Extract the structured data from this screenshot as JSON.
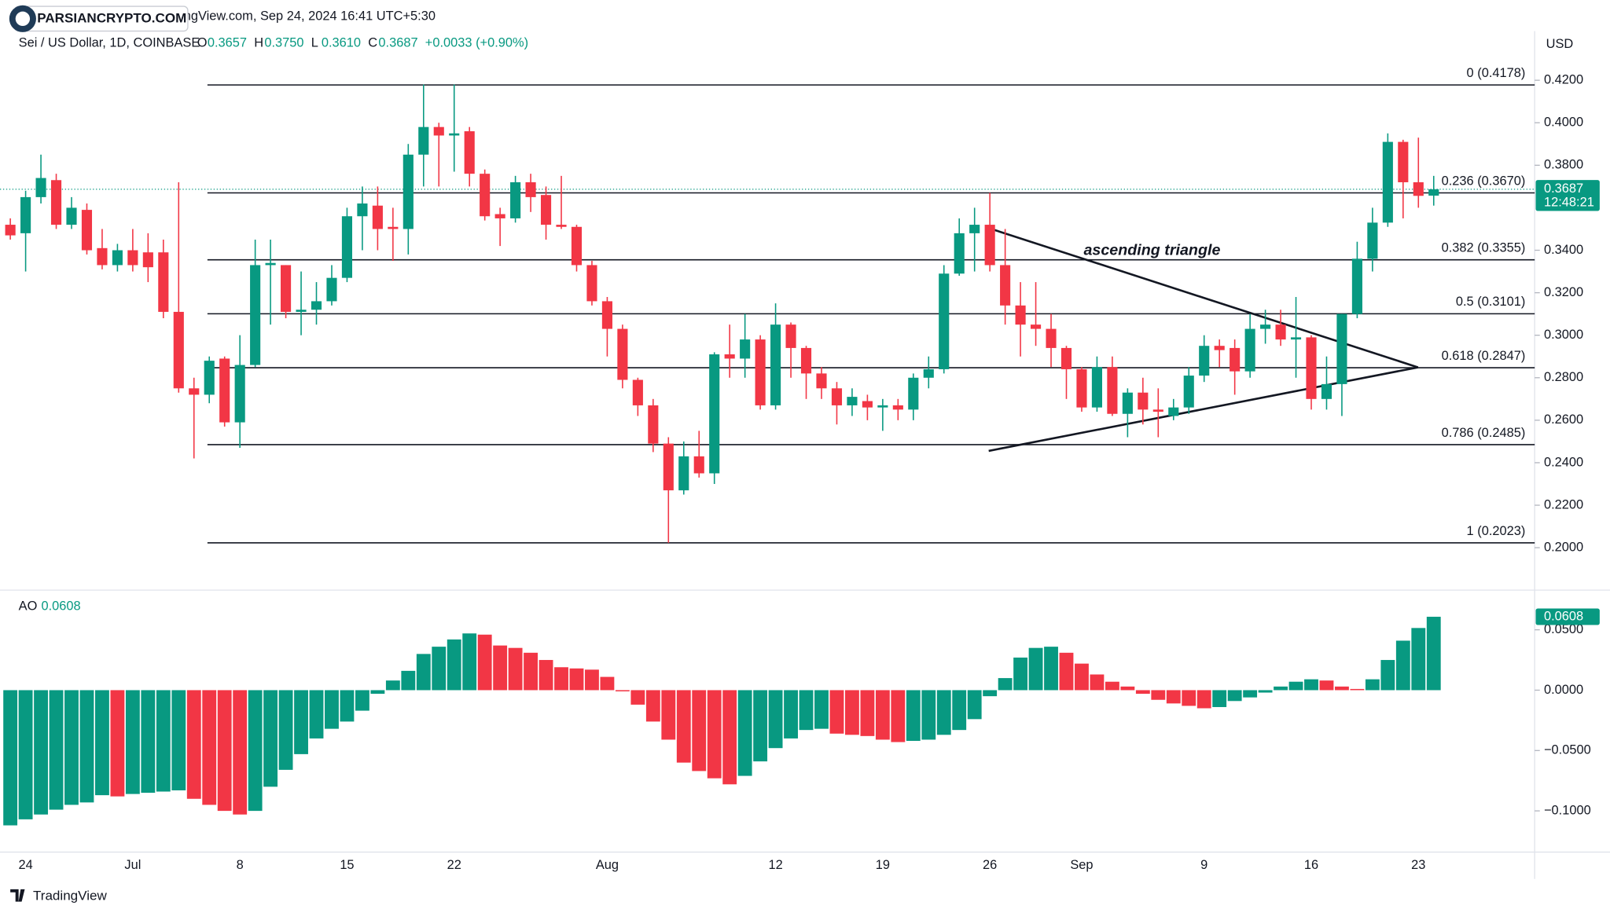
{
  "header": {
    "snapshot": "TradingView.com, Sep 24, 2024 16:41 UTC+5:30",
    "watermark": "PARSIANCRYPTO.COM",
    "symbol": "Sei / US Dollar, 1D, COINBASE",
    "ohlc": [
      {
        "label": "O",
        "value": "0.3657"
      },
      {
        "label": "H",
        "value": "0.3750"
      },
      {
        "label": "L",
        "value": "0.3610"
      },
      {
        "label": "C",
        "value": "0.3687"
      }
    ],
    "change": "+0.0033 (+0.90%)",
    "currency": "USD",
    "countdown": "12:48:21",
    "footer": "TradingView"
  },
  "chart_data": [
    {
      "type": "candlestick",
      "up_color": "#089981",
      "down_color": "#f23645",
      "annotation": "ascending triangle",
      "categories": [
        null,
        "24",
        null,
        null,
        null,
        null,
        null,
        null,
        "Jul",
        null,
        null,
        null,
        null,
        null,
        null,
        "8",
        null,
        null,
        null,
        null,
        null,
        null,
        "15",
        null,
        null,
        null,
        null,
        null,
        null,
        "22",
        null,
        null,
        null,
        null,
        null,
        null,
        null,
        null,
        null,
        "Aug",
        null,
        null,
        null,
        null,
        null,
        null,
        null,
        null,
        null,
        null,
        "12",
        null,
        null,
        null,
        null,
        null,
        null,
        "19",
        null,
        null,
        null,
        null,
        null,
        null,
        "26",
        null,
        null,
        null,
        null,
        null,
        "Sep",
        null,
        null,
        null,
        null,
        null,
        null,
        null,
        "9",
        null,
        null,
        null,
        null,
        null,
        null,
        "16",
        null,
        null,
        null,
        null,
        null,
        null,
        "23",
        null
      ],
      "open": [
        0.352,
        0.348,
        0.365,
        0.373,
        0.352,
        0.359,
        0.341,
        0.333,
        0.34,
        0.339,
        0.339,
        0.311,
        0.275,
        0.272,
        0.289,
        0.259,
        0.286,
        0.333,
        0.333,
        0.311,
        0.312,
        0.316,
        0.327,
        0.356,
        0.361,
        0.351,
        0.35,
        0.385,
        0.398,
        0.394,
        0.396,
        0.376,
        0.357,
        0.355,
        0.372,
        0.366,
        0.352,
        0.351,
        0.333,
        0.316,
        0.303,
        0.279,
        0.267,
        0.249,
        0.227,
        0.243,
        0.235,
        0.291,
        0.289,
        0.298,
        0.267,
        0.305,
        0.294,
        0.282,
        0.275,
        0.267,
        0.269,
        0.266,
        0.267,
        0.265,
        0.28,
        0.284,
        0.329,
        0.348,
        0.352,
        0.333,
        0.314,
        0.305,
        0.303,
        0.294,
        0.284,
        0.266,
        0.285,
        0.263,
        0.273,
        0.265,
        0.262,
        0.266,
        0.281,
        0.295,
        0.294,
        0.283,
        0.303,
        0.305,
        0.298,
        0.299,
        0.27,
        0.277,
        0.31,
        0.336,
        0.353,
        0.391,
        0.372,
        0.3657
      ],
      "high": [
        0.355,
        0.368,
        0.385,
        0.376,
        0.365,
        0.362,
        0.35,
        0.343,
        0.35,
        0.348,
        0.345,
        0.372,
        0.28,
        0.29,
        0.29,
        0.3,
        0.345,
        0.345,
        0.333,
        0.33,
        0.325,
        0.333,
        0.36,
        0.37,
        0.37,
        0.36,
        0.39,
        0.418,
        0.4,
        0.418,
        0.398,
        0.378,
        0.36,
        0.375,
        0.376,
        0.37,
        0.375,
        0.352,
        0.335,
        0.318,
        0.305,
        0.28,
        0.27,
        0.252,
        0.25,
        0.255,
        0.292,
        0.305,
        0.31,
        0.3,
        0.315,
        0.306,
        0.295,
        0.285,
        0.278,
        0.275,
        0.272,
        0.27,
        0.27,
        0.282,
        0.29,
        0.333,
        0.355,
        0.36,
        0.367,
        0.35,
        0.325,
        0.325,
        0.31,
        0.295,
        0.285,
        0.29,
        0.29,
        0.275,
        0.28,
        0.275,
        0.27,
        0.285,
        0.3,
        0.298,
        0.298,
        0.31,
        0.312,
        0.312,
        0.318,
        0.3,
        0.29,
        0.31,
        0.344,
        0.36,
        0.395,
        0.392,
        0.393,
        0.375
      ],
      "low": [
        0.345,
        0.33,
        0.362,
        0.35,
        0.35,
        0.338,
        0.331,
        0.33,
        0.33,
        0.325,
        0.308,
        0.273,
        0.242,
        0.268,
        0.257,
        0.247,
        0.285,
        0.305,
        0.308,
        0.3,
        0.305,
        0.314,
        0.325,
        0.34,
        0.34,
        0.335,
        0.338,
        0.37,
        0.37,
        0.377,
        0.37,
        0.354,
        0.342,
        0.353,
        0.358,
        0.345,
        0.35,
        0.33,
        0.314,
        0.29,
        0.275,
        0.262,
        0.245,
        0.2023,
        0.225,
        0.233,
        0.23,
        0.28,
        0.28,
        0.265,
        0.265,
        0.28,
        0.27,
        0.27,
        0.258,
        0.262,
        0.26,
        0.255,
        0.26,
        0.26,
        0.275,
        0.282,
        0.328,
        0.33,
        0.33,
        0.305,
        0.29,
        0.295,
        0.285,
        0.27,
        0.264,
        0.264,
        0.262,
        0.252,
        0.258,
        0.252,
        0.26,
        0.263,
        0.278,
        0.285,
        0.272,
        0.28,
        0.296,
        0.295,
        0.28,
        0.265,
        0.265,
        0.262,
        0.308,
        0.33,
        0.351,
        0.355,
        0.36,
        0.361
      ],
      "close": [
        0.347,
        0.365,
        0.374,
        0.352,
        0.36,
        0.34,
        0.333,
        0.34,
        0.333,
        0.332,
        0.311,
        0.275,
        0.272,
        0.288,
        0.259,
        0.286,
        0.333,
        0.334,
        0.311,
        0.312,
        0.316,
        0.327,
        0.356,
        0.362,
        0.35,
        0.35,
        0.385,
        0.398,
        0.394,
        0.395,
        0.376,
        0.356,
        0.355,
        0.372,
        0.365,
        0.352,
        0.351,
        0.333,
        0.316,
        0.303,
        0.279,
        0.267,
        0.249,
        0.227,
        0.243,
        0.235,
        0.291,
        0.289,
        0.298,
        0.267,
        0.305,
        0.294,
        0.282,
        0.275,
        0.267,
        0.271,
        0.266,
        0.267,
        0.265,
        0.28,
        0.284,
        0.329,
        0.348,
        0.352,
        0.333,
        0.314,
        0.305,
        0.303,
        0.294,
        0.284,
        0.266,
        0.285,
        0.263,
        0.273,
        0.265,
        0.264,
        0.266,
        0.281,
        0.295,
        0.293,
        0.283,
        0.303,
        0.305,
        0.298,
        0.299,
        0.27,
        0.277,
        0.31,
        0.336,
        0.353,
        0.391,
        0.372,
        0.3656,
        0.3687
      ],
      "levels": [
        {
          "value": 0.4178,
          "label": "0 (0.4178)"
        },
        {
          "value": 0.367,
          "label": "0.236 (0.3670)"
        },
        {
          "value": 0.3355,
          "label": "0.382 (0.3355)"
        },
        {
          "value": 0.3101,
          "label": "0.5 (0.3101)"
        },
        {
          "value": 0.2847,
          "label": "0.618 (0.2847)"
        },
        {
          "value": 0.2485,
          "label": "0.786 (0.2485)"
        },
        {
          "value": 0.2023,
          "label": "1 (0.2023)"
        }
      ],
      "ylim": [
        0.181,
        0.431
      ],
      "yticks": [
        {
          "value": 0.42,
          "label": "0.4200"
        },
        {
          "value": 0.4,
          "label": "0.4000"
        },
        {
          "value": 0.38,
          "label": "0.3800"
        },
        {
          "value": 0.34,
          "label": "0.3400"
        },
        {
          "value": 0.32,
          "label": "0.3200"
        },
        {
          "value": 0.3,
          "label": "0.3000"
        },
        {
          "value": 0.28,
          "label": "0.2800"
        },
        {
          "value": 0.26,
          "label": "0.2600"
        },
        {
          "value": 0.24,
          "label": "0.2400"
        },
        {
          "value": 0.22,
          "label": "0.2200"
        },
        {
          "value": 0.2,
          "label": "0.2000"
        }
      ]
    },
    {
      "type": "bar",
      "title": "AO",
      "up_color": "#089981",
      "down_color": "#f23645",
      "values": [
        -0.112,
        -0.107,
        -0.103,
        -0.099,
        -0.095,
        -0.093,
        -0.087,
        -0.088,
        -0.086,
        -0.085,
        -0.084,
        -0.083,
        -0.09,
        -0.095,
        -0.1,
        -0.103,
        -0.1,
        -0.08,
        -0.066,
        -0.053,
        -0.04,
        -0.032,
        -0.026,
        -0.017,
        -0.003,
        0.008,
        0.016,
        0.03,
        0.036,
        0.042,
        0.047,
        0.046,
        0.037,
        0.035,
        0.031,
        0.025,
        0.019,
        0.018,
        0.017,
        0.011,
        -0.001,
        -0.012,
        -0.026,
        -0.041,
        -0.06,
        -0.067,
        -0.073,
        -0.078,
        -0.071,
        -0.059,
        -0.048,
        -0.04,
        -0.033,
        -0.032,
        -0.036,
        -0.037,
        -0.038,
        -0.041,
        -0.043,
        -0.042,
        -0.041,
        -0.037,
        -0.033,
        -0.024,
        -0.005,
        0.01,
        0.027,
        0.035,
        0.036,
        0.031,
        0.022,
        0.013,
        0.007,
        0.003,
        -0.003,
        -0.008,
        -0.011,
        -0.013,
        -0.015,
        -0.014,
        -0.009,
        -0.006,
        -0.002,
        0.003,
        0.007,
        0.009,
        0.008,
        0.003,
        0.001,
        0.009,
        0.025,
        0.041,
        0.0515,
        0.0608
      ],
      "ylim": [
        -0.1333,
        0.0803
      ],
      "yticks": [
        {
          "value": 0.05,
          "label": "0.0500"
        },
        {
          "value": 0,
          "label": "0.0000"
        },
        {
          "value": -0.05,
          "label": "−0.0500"
        },
        {
          "value": -0.1,
          "label": "−0.1000"
        }
      ]
    }
  ]
}
